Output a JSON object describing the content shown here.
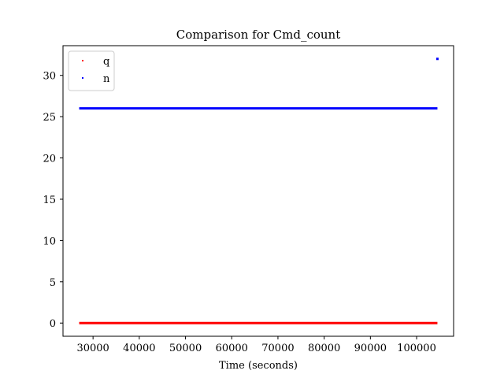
{
  "chart_data": {
    "type": "scatter",
    "title": "Comparison for Cmd_count",
    "xlabel": "Time (seconds)",
    "ylabel": "",
    "xlim": [
      23500,
      108000
    ],
    "ylim": [
      -1.6,
      33.6
    ],
    "x_ticks": [
      30000,
      40000,
      50000,
      60000,
      70000,
      80000,
      90000,
      100000
    ],
    "y_ticks": [
      0,
      5,
      10,
      15,
      20,
      25,
      30
    ],
    "legend": {
      "placement": "top-left",
      "entries": [
        "q",
        "n"
      ]
    },
    "grid": false,
    "series": [
      {
        "name": "q",
        "color": "#ff0000",
        "segments": [
          {
            "x_start": 27000,
            "x_end": 104500,
            "y": 0
          }
        ],
        "points": []
      },
      {
        "name": "n",
        "color": "#0000ff",
        "segments": [
          {
            "x_start": 27000,
            "x_end": 104500,
            "y": 26
          }
        ],
        "points": [
          {
            "x": 104500,
            "y": 32
          }
        ]
      }
    ]
  }
}
